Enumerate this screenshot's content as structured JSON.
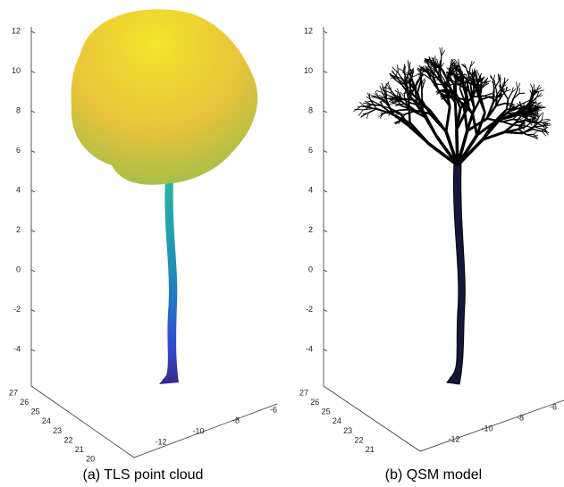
{
  "panels": [
    {
      "caption": "(a) TLS point cloud",
      "z_ticks": [
        12,
        10,
        8,
        6,
        4,
        2,
        0,
        -2,
        -4
      ],
      "y_ticks": [
        27,
        26,
        25,
        24,
        23,
        22,
        21,
        20
      ],
      "x_ticks": [
        -12,
        -10,
        -8,
        -6
      ]
    },
    {
      "caption": "(b) QSM model",
      "z_ticks": [
        12,
        10,
        8,
        6,
        4,
        2,
        0,
        -2,
        -4
      ],
      "y_ticks": [
        27,
        26,
        25,
        24,
        23,
        22,
        21
      ],
      "x_ticks": [
        -12,
        -10,
        -8,
        -6
      ]
    }
  ]
}
